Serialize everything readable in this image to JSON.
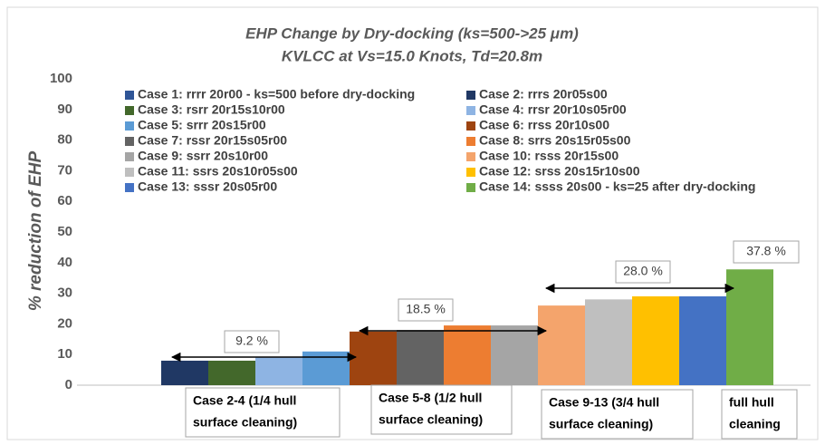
{
  "chart_data": {
    "type": "bar",
    "title": [
      "EHP Change by Dry-docking (ks=500->25 μm)",
      "KVLCC at Vs=15.0 Knots, Td=20.8m"
    ],
    "y_label": "% reduction of EHP",
    "categories": [
      null
    ],
    "series": [
      {
        "name": "Case 1: rrrr 20r00 -  ks=500 before dry-docking",
        "color": "#2f5597",
        "values": [
          0
        ]
      },
      {
        "name": "Case 2: rrrs 20r05s00",
        "color": "#203864",
        "values": [
          8
        ]
      },
      {
        "name": "Case 3: rsrr 20r15s10r00",
        "color": "#43682b",
        "values": [
          8
        ]
      },
      {
        "name": "Case 4: rrsr 20r10s05r00",
        "color": "#8eb4e3",
        "values": [
          9
        ]
      },
      {
        "name": "Case 5: srrr 20s15r00",
        "color": "#5b9bd5",
        "values": [
          11
        ]
      },
      {
        "name": "Case 6: rrss 20r10s00",
        "color": "#9e4410",
        "values": [
          17.5
        ]
      },
      {
        "name": "Case 7: rssr 20r15s05r00",
        "color": "#636363",
        "values": [
          18
        ]
      },
      {
        "name": "Case 8: srrs 20s15r05s00",
        "color": "#ed7d31",
        "values": [
          19.5
        ]
      },
      {
        "name": "Case 9: ssrr 20s10r00",
        "color": "#a5a5a5",
        "values": [
          19.5
        ]
      },
      {
        "name": "Case 10: rsss 20r15s00",
        "color": "#f4a46c",
        "values": [
          26
        ]
      },
      {
        "name": "Case 11: ssrs 20s10r05s00",
        "color": "#bfbfbf",
        "values": [
          28
        ]
      },
      {
        "name": "Case 12: srss 20s15r10s00",
        "color": "#ffc000",
        "values": [
          29
        ]
      },
      {
        "name": "Case 13: sssr 20s05r00",
        "color": "#4472c4",
        "values": [
          29
        ]
      },
      {
        "name": "Case 14: ssss 20s00 - ks=25 after dry-docking",
        "color": "#70ad47",
        "values": [
          37.8
        ]
      }
    ],
    "ylim": [
      0,
      100
    ],
    "yticks": [
      0,
      10,
      20,
      30,
      40,
      50,
      60,
      70,
      80,
      90,
      100
    ],
    "grid": false,
    "annotations": [
      "9.2 %",
      "18.5 %",
      "28.0 %",
      "37.8 %"
    ],
    "group_labels": [
      [
        "Case 2-4 (1/4 hull",
        "surface  cleaning)"
      ],
      [
        "Case 5-8 (1/2 hull",
        "surface cleaning)"
      ],
      [
        "Case 9-13 (3/4 hull",
        "surface cleaning)"
      ],
      [
        "full hull",
        "cleaning"
      ]
    ]
  }
}
